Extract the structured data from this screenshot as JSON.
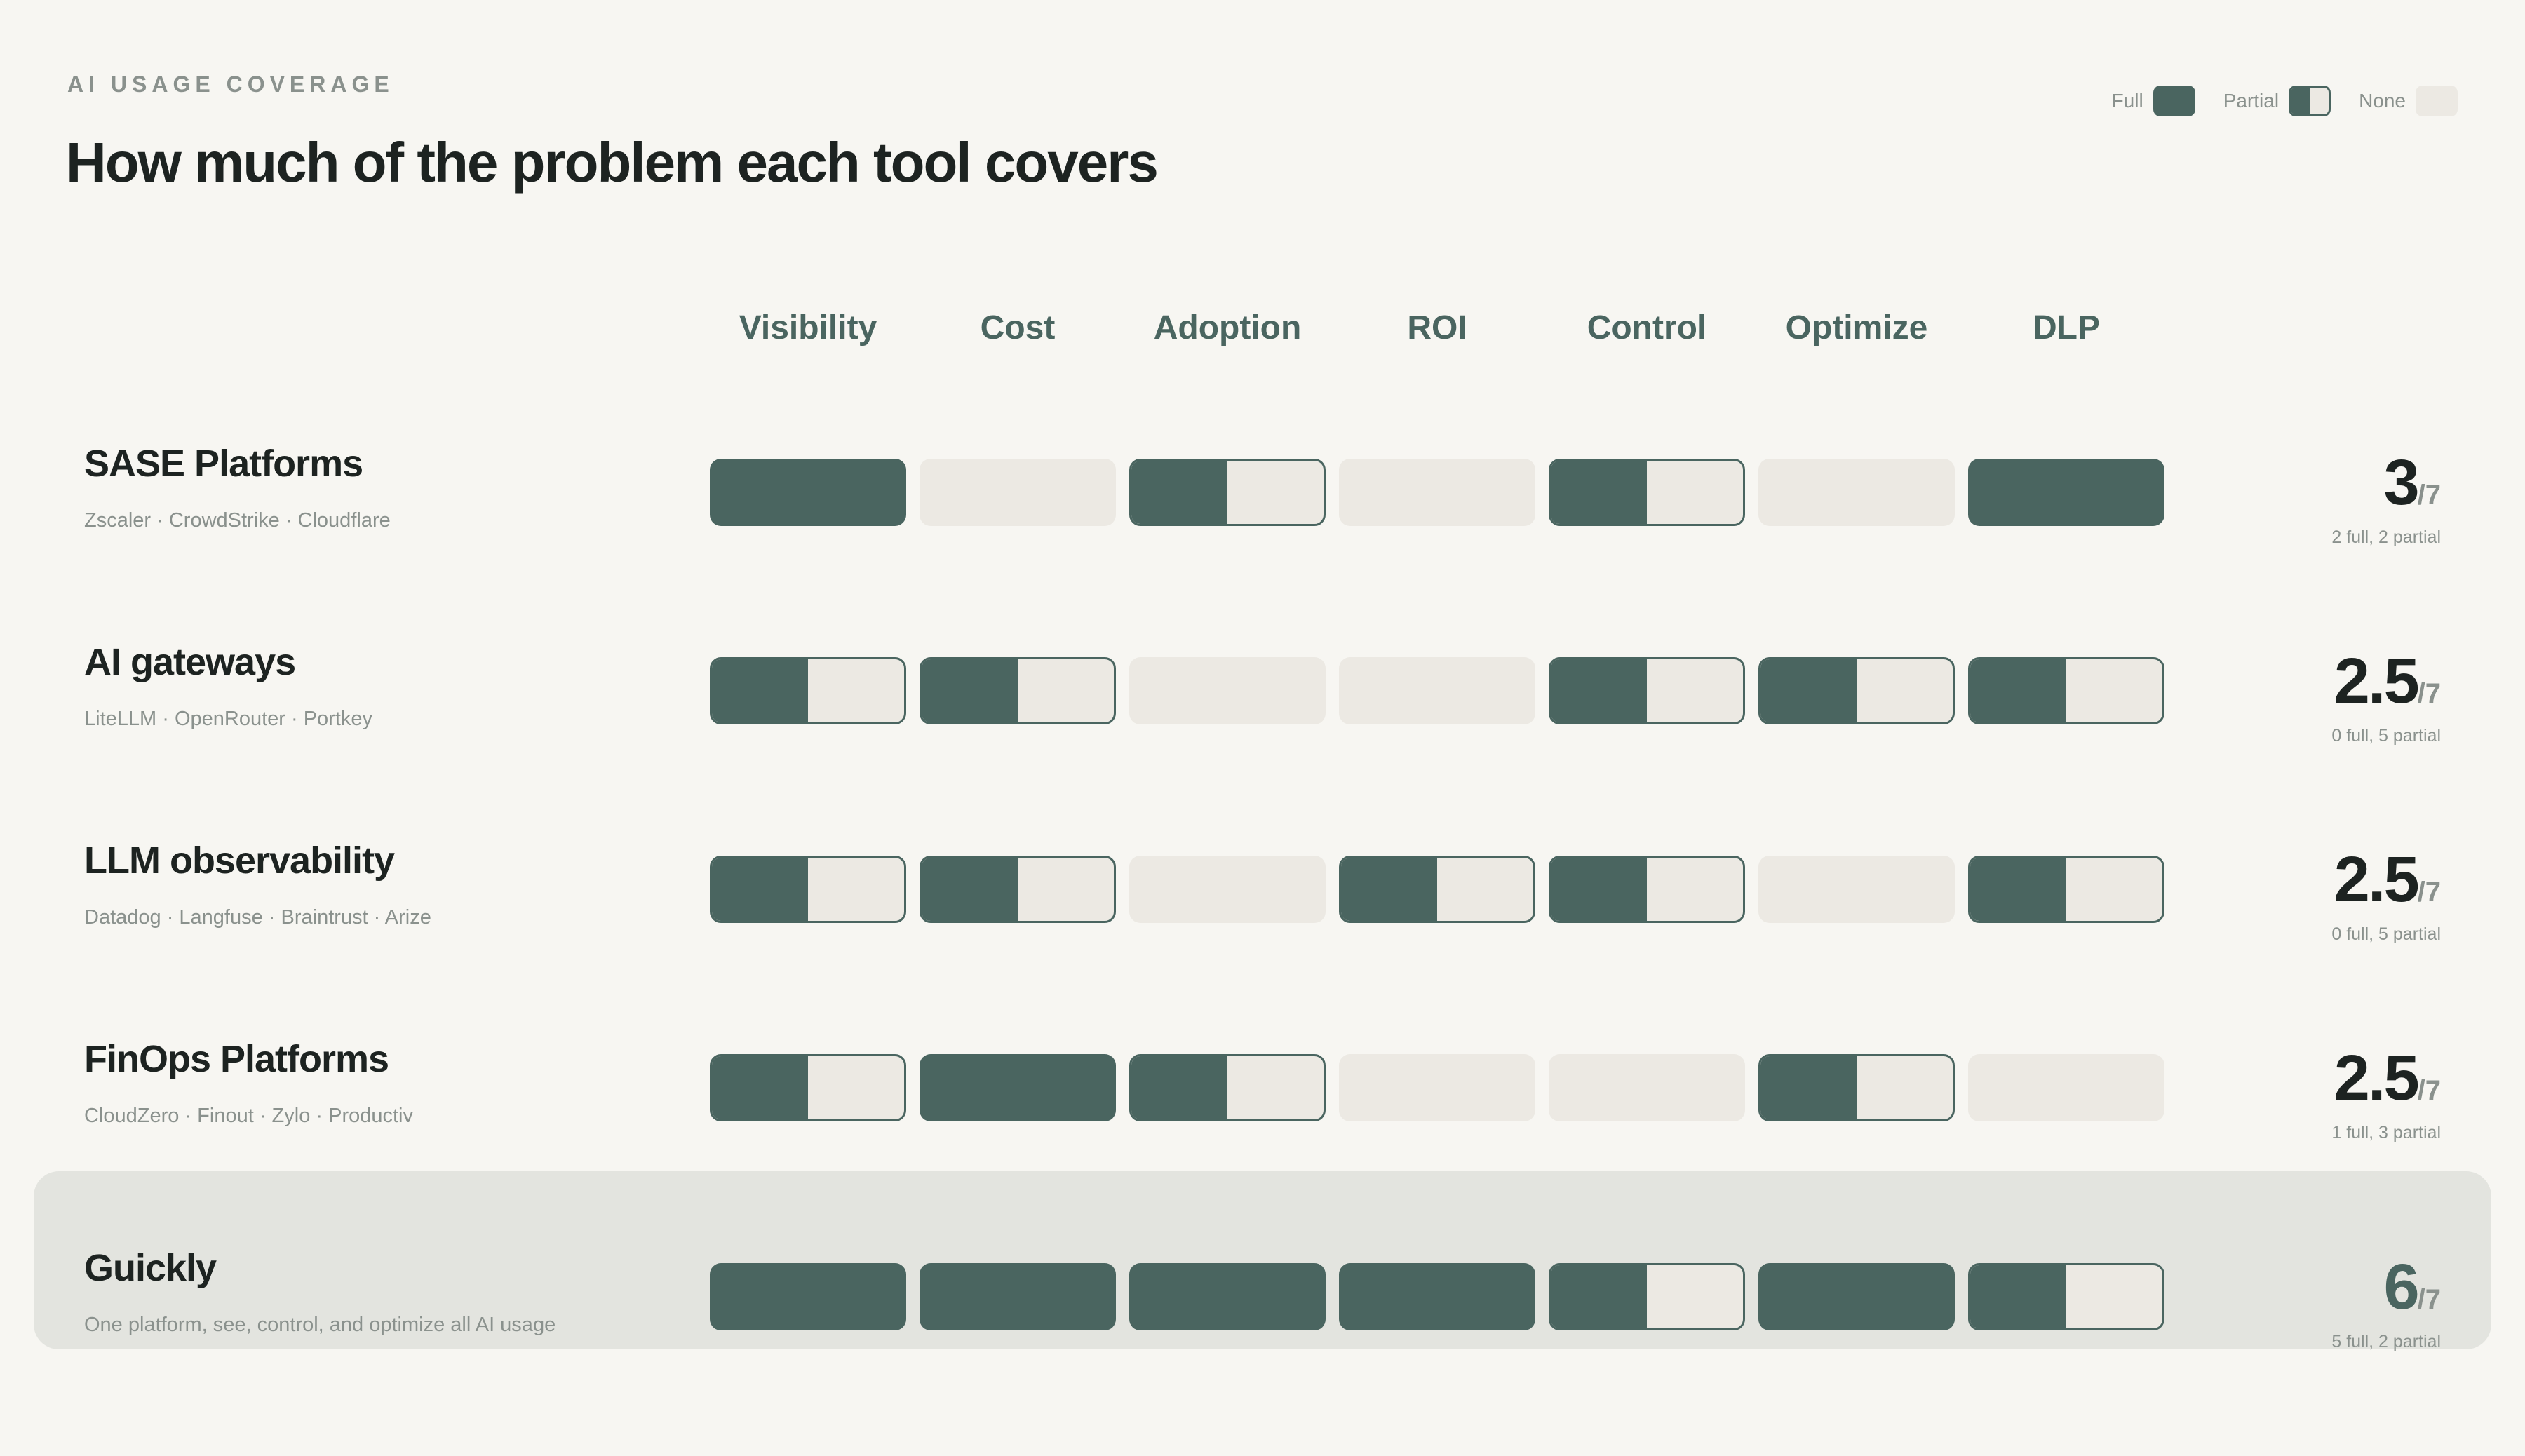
{
  "header": {
    "eyebrow": "AI USAGE COVERAGE",
    "title": "How much of the problem each tool covers"
  },
  "legend": {
    "full": "Full",
    "partial": "Partial",
    "none": "None"
  },
  "colors": {
    "full": "#4a6560",
    "none": "#ece9e3",
    "highlight_row": "#e3e4df",
    "background": "#f7f6f2"
  },
  "chart_data": {
    "type": "table",
    "title": "How much of the problem each tool covers",
    "columns": [
      "Visibility",
      "Cost",
      "Adoption",
      "ROI",
      "Control",
      "Optimize",
      "DLP"
    ],
    "score_denominator": "/7",
    "rows": [
      {
        "name": "SASE Platforms",
        "examples": "Zscaler · CrowdStrike · Cloudflare",
        "coverage": [
          "full",
          "none",
          "partial",
          "none",
          "partial",
          "none",
          "full"
        ],
        "score": "3",
        "score_detail": "2 full, 2 partial",
        "highlight": false
      },
      {
        "name": "AI gateways",
        "examples": "LiteLLM · OpenRouter · Portkey",
        "coverage": [
          "partial",
          "partial",
          "none",
          "none",
          "partial",
          "partial",
          "partial"
        ],
        "score": "2.5",
        "score_detail": "0 full, 5 partial",
        "highlight": false
      },
      {
        "name": "LLM observability",
        "examples": "Datadog · Langfuse · Braintrust · Arize",
        "coverage": [
          "partial",
          "partial",
          "none",
          "partial",
          "partial",
          "none",
          "partial"
        ],
        "score": "2.5",
        "score_detail": "0 full, 5 partial",
        "highlight": false
      },
      {
        "name": "FinOps Platforms",
        "examples": "CloudZero · Finout · Zylo · Productiv",
        "coverage": [
          "partial",
          "full",
          "partial",
          "none",
          "none",
          "partial",
          "none"
        ],
        "score": "2.5",
        "score_detail": "1 full, 3 partial",
        "highlight": false
      },
      {
        "name": "Guickly",
        "examples": "One platform, see, control, and optimize all AI usage",
        "coverage": [
          "full",
          "full",
          "full",
          "full",
          "partial",
          "full",
          "partial"
        ],
        "score": "6",
        "score_detail": "5 full, 2 partial",
        "highlight": true
      }
    ]
  }
}
